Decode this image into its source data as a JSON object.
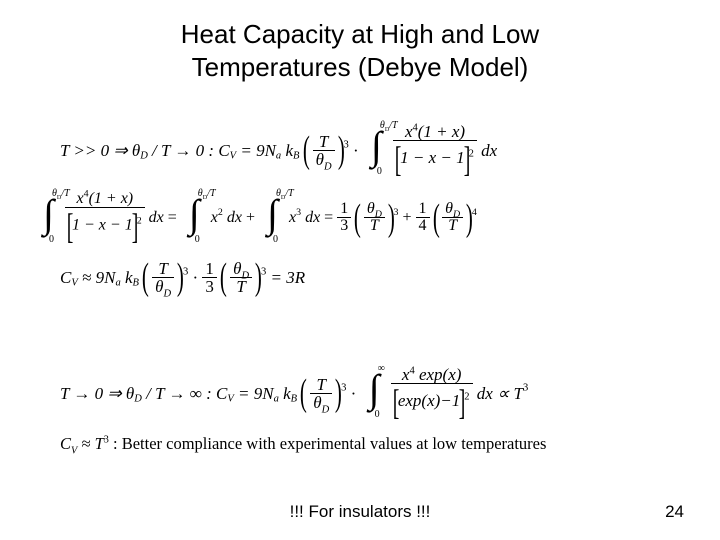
{
  "title_line1": "Heat Capacity at High and Low",
  "title_line2": "Temperatures (Debye Model)",
  "eq1": {
    "pre": "T >> 0 ⇒ θ",
    "sub1": "D",
    "mid1": "/ T → 0 : C",
    "subV": "V",
    "mid2": " = 9N",
    "suba": "a",
    "mid3": "k",
    "subB": "B",
    "T": "T",
    "thetaD": "θ",
    "Dsub": "D",
    "cubed": "3",
    "dot": "·",
    "int_hi": "θ",
    "int_hi_sub": "D",
    "int_hi_tail": "/T",
    "int_lo": "0",
    "num_x4": "x",
    "num_x4_sup": "4",
    "num_rest": "(1 + x)",
    "den_in": "1 − x − 1",
    "den_sup": "2",
    "dx": "dx"
  },
  "eq2": {
    "int_hi": "θ",
    "int_hi_sub": "D",
    "int_hi_tail": "/T",
    "int_lo": "0",
    "frac1_num_a": "x",
    "frac1_num_sup": "4",
    "frac1_num_b": "(1 + x)",
    "frac1_den_in": "1 − x − 1",
    "frac1_den_sup": "2",
    "dx": "dx",
    "eq": " = ",
    "x2": "x",
    "x2_sup": "2",
    "plus": " + ",
    "x3": "x",
    "x3_sup": "3",
    "eq2_pref": " = ",
    "one_third_num": "1",
    "one_third_den": "3",
    "theta": "θ",
    "Dsub": "D",
    "T": "T",
    "sup3": "3",
    "plus2": " + ",
    "one_fourth_num": "1",
    "one_fourth_den": "4",
    "sup4": "4"
  },
  "eq3": {
    "C": "C",
    "Vsub": "V",
    "approx": " ≈ 9N",
    "asub": "a",
    "k": "k",
    "Bsub": "B",
    "T": "T",
    "theta": "θ",
    "Dsub": "D",
    "sup3": "3",
    "dot": "·",
    "one_third_num": "1",
    "one_third_den": "3",
    "eq3R": " = 3R"
  },
  "eq4": {
    "pre": "T → 0 ⇒ θ",
    "Dsub": "D",
    "mid1": "/ T → ∞ : C",
    "Vsub": "V",
    "mid2": " = 9N",
    "asub": "a",
    "k": "k",
    "Bsub": "B",
    "T": "T",
    "theta": "θ",
    "sup3": "3",
    "dot": "·",
    "int_hi": "∞",
    "int_lo": "0",
    "num_x": "x",
    "num_x_sup": "4",
    "num_exp": " exp(x)",
    "den_in": "exp(x)−1",
    "den_sup": "2",
    "dx": "dx ∝ T",
    "t3": "3"
  },
  "eq5": {
    "C": "C",
    "Vsub": "V",
    "approx": " ≈ T",
    "sup3": "3",
    "text": ": Better compliance with experimental values at low temperatures"
  },
  "footer": "!!!   For insulators !!!",
  "page": "24"
}
